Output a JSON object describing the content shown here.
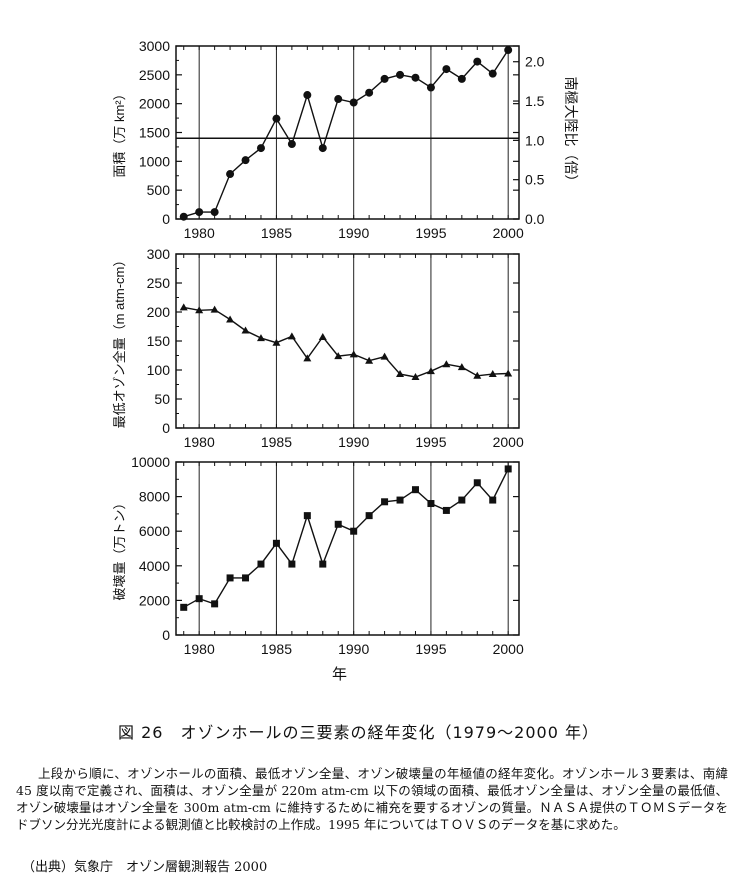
{
  "chart_data": [
    {
      "type": "line",
      "id": "area",
      "ylabel": "面積（万 km²）",
      "y2label": "南極大陸比（倍）",
      "ylim": [
        0,
        3000
      ],
      "y2lim": [
        0,
        2.2
      ],
      "xlim": [
        1979,
        2000
      ],
      "x": [
        1979,
        1980,
        1981,
        1982,
        1983,
        1984,
        1985,
        1986,
        1987,
        1988,
        1989,
        1990,
        1991,
        1992,
        1993,
        1994,
        1995,
        1996,
        1997,
        1998,
        1999,
        2000
      ],
      "values": [
        40,
        120,
        120,
        780,
        1020,
        1230,
        1740,
        1300,
        2150,
        1230,
        2080,
        2020,
        2190,
        2430,
        2500,
        2450,
        2280,
        2600,
        2430,
        2730,
        2520,
        2930
      ],
      "reference_line": 1400,
      "marker": "circle",
      "yticks": [
        0,
        500,
        1000,
        1500,
        2000,
        2500,
        3000
      ],
      "y2ticks": [
        0.0,
        0.5,
        1.0,
        1.5,
        2.0
      ]
    },
    {
      "type": "line",
      "id": "min_ozone",
      "ylabel": "最低オゾン全量（m atm-cm）",
      "ylim": [
        0,
        300
      ],
      "xlim": [
        1979,
        2000
      ],
      "x": [
        1979,
        1980,
        1981,
        1982,
        1983,
        1984,
        1985,
        1986,
        1987,
        1988,
        1989,
        1990,
        1991,
        1992,
        1993,
        1994,
        1995,
        1996,
        1997,
        1998,
        1999,
        2000
      ],
      "values": [
        208,
        203,
        204,
        187,
        168,
        155,
        147,
        158,
        120,
        157,
        124,
        127,
        116,
        123,
        93,
        88,
        98,
        110,
        105,
        90,
        93,
        94
      ],
      "marker": "triangle",
      "yticks": [
        0,
        50,
        100,
        150,
        200,
        250,
        300
      ]
    },
    {
      "type": "line",
      "id": "destruction",
      "ylabel": "破壊量（万トン）",
      "xlabel": "年",
      "ylim": [
        0,
        10000
      ],
      "xlim": [
        1979,
        2000
      ],
      "x": [
        1979,
        1980,
        1981,
        1982,
        1983,
        1984,
        1985,
        1986,
        1987,
        1988,
        1989,
        1990,
        1991,
        1992,
        1993,
        1994,
        1995,
        1996,
        1997,
        1998,
        1999,
        2000
      ],
      "values": [
        1600,
        2100,
        1800,
        3300,
        3300,
        4100,
        5300,
        4100,
        6900,
        4100,
        6400,
        6000,
        6900,
        7700,
        7800,
        8400,
        7600,
        7200,
        7800,
        8800,
        7800,
        9600
      ],
      "marker": "square",
      "yticks": [
        0,
        2000,
        4000,
        6000,
        8000,
        10000
      ]
    }
  ],
  "xticks": [
    1980,
    1985,
    1990,
    1995,
    2000
  ],
  "caption": {
    "title": "図 26　オゾンホールの三要素の経年変化（1979〜2000 年）",
    "body": "上段から順に、オゾンホールの面積、最低オゾン全量、オゾン破壊量の年極値の経年変化。オゾンホール３要素は、南緯 45 度以南で定義され、面積は、オゾン全量が 220m atm-cm 以下の領域の面積、最低オゾン全量は、オゾン全量の最低値、オゾン破壊量はオゾン全量を 300m atm-cm に維持するために補充を要するオゾンの質量。ＮＡＳＡ提供のＴＯＭＳデータをドブソン分光光度計による観測値と比較検討の上作成。1995 年についてはＴＯＶＳのデータを基に求めた。",
    "source": "（出典）気象庁　オゾン層観測報告 2000"
  }
}
